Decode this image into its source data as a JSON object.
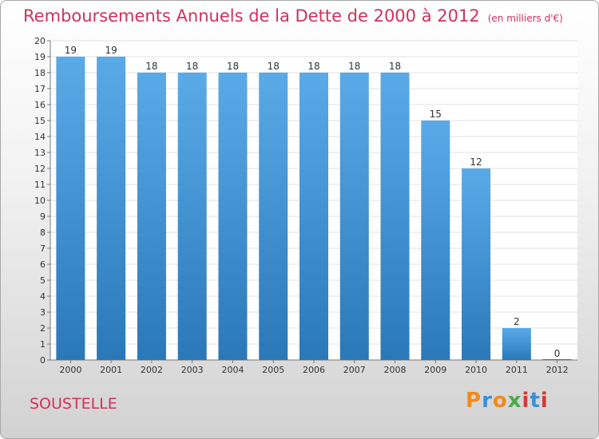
{
  "chart_data": {
    "type": "bar",
    "title": "Remboursements Annuels de la Dette de 2000 à 2012",
    "unit_note": "(en milliers d'€)",
    "categories": [
      "2000",
      "2001",
      "2002",
      "2003",
      "2004",
      "2005",
      "2006",
      "2007",
      "2008",
      "2009",
      "2010",
      "2011",
      "2012"
    ],
    "values": [
      19,
      19,
      18,
      18,
      18,
      18,
      18,
      18,
      18,
      15,
      12,
      2,
      0
    ],
    "y_ticks": [
      0,
      1,
      2,
      3,
      4,
      5,
      6,
      7,
      8,
      9,
      10,
      11,
      12,
      13,
      14,
      15,
      16,
      17,
      18,
      19,
      20
    ],
    "ylim": [
      0,
      20
    ],
    "xlabel": "",
    "ylabel": "",
    "grid": true
  },
  "place_name": "SOUSTELLE",
  "brand": {
    "letters": [
      "P",
      "r",
      "o",
      "x",
      "i",
      "t",
      "i"
    ],
    "colors": [
      "#f08a1c",
      "#3b8fd8",
      "#f08a1c",
      "#4aa84a",
      "#d13a3a",
      "#3b8fd8",
      "#d13a3a"
    ]
  },
  "colors": {
    "bar_top": "#5aaae8",
    "bar_bottom": "#2a78b8",
    "accent": "#d1305c"
  }
}
